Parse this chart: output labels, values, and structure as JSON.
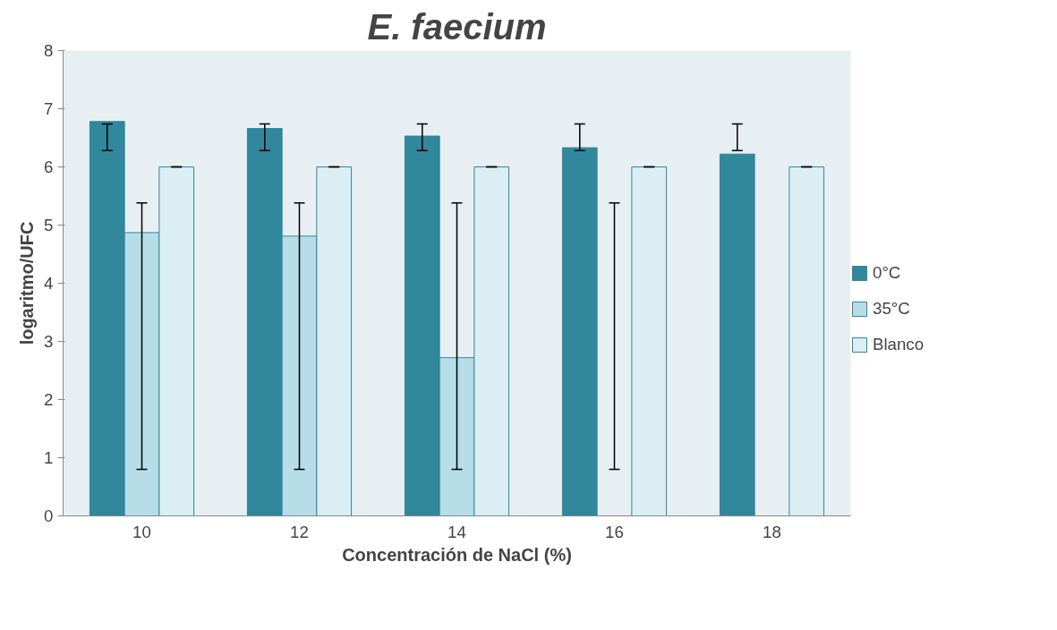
{
  "chart_data": {
    "type": "bar",
    "title": "E. faecium",
    "xlabel": "Concentración de NaCl (%)",
    "ylabel": "logaritmo/UFC",
    "categories": [
      "10",
      "12",
      "14",
      "16",
      "18"
    ],
    "series": [
      {
        "name": "0°C",
        "color": "#31879b",
        "values": [
          6.78,
          6.66,
          6.53,
          6.33,
          6.22
        ],
        "errors": [
          [
            6.28,
            6.74
          ],
          [
            6.28,
            6.74
          ],
          [
            6.28,
            6.74
          ],
          [
            6.28,
            6.74
          ],
          [
            6.28,
            6.74
          ]
        ]
      },
      {
        "name": "35°C",
        "color": "#b7dde8",
        "values": [
          4.87,
          4.81,
          2.72,
          0,
          null
        ],
        "errors": [
          [
            0.8,
            5.38
          ],
          [
            0.8,
            5.38
          ],
          [
            0.8,
            5.38
          ],
          [
            0.8,
            5.38
          ],
          null
        ]
      },
      {
        "name": "Blanco",
        "color": "#dbeef4",
        "values": [
          6,
          6,
          6,
          6,
          6
        ],
        "errors": [
          0,
          0,
          0,
          0,
          0
        ]
      }
    ],
    "ylim": [
      0,
      8
    ],
    "yticks": [
      0,
      1,
      2,
      3,
      4,
      5,
      6,
      7,
      8
    ],
    "grid": false,
    "legend": "right"
  }
}
